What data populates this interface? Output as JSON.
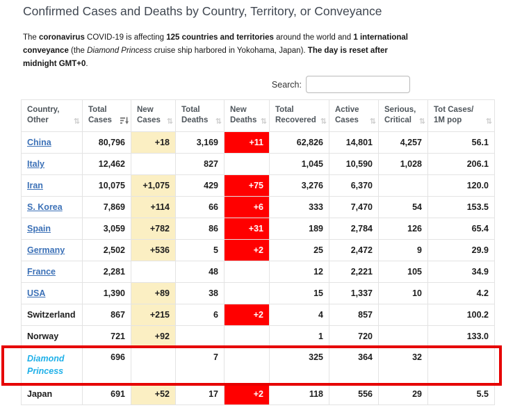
{
  "page": {
    "title": "Confirmed Cases and Deaths by Country, Territory, or Conveyance",
    "intro_segments": [
      {
        "text": "The ",
        "bold": false
      },
      {
        "text": "coronavirus",
        "bold": true
      },
      {
        "text": " COVID-19 is affecting ",
        "bold": false
      },
      {
        "text": "125 countries and territories",
        "bold": true
      },
      {
        "text": " around the world and ",
        "bold": false
      },
      {
        "text": "1 international conveyance",
        "bold": true
      },
      {
        "text": " (the ",
        "bold": false
      },
      {
        "text": "Diamond Princess",
        "bold": false,
        "italic": true
      },
      {
        "text": " cruise ship harbored in Yokohama, Japan). ",
        "bold": false
      },
      {
        "text": "The day is reset after midnight GMT+0",
        "bold": true
      },
      {
        "text": ".",
        "bold": false
      }
    ]
  },
  "search": {
    "label": "Search:",
    "value": "",
    "placeholder": ""
  },
  "table": {
    "columns": [
      {
        "key": "country",
        "line1": "Country,",
        "line2": "Other",
        "sort": "none"
      },
      {
        "key": "total_cases",
        "line1": "Total",
        "line2": "Cases",
        "sort": "desc"
      },
      {
        "key": "new_cases",
        "line1": "New",
        "line2": "Cases",
        "sort": "none"
      },
      {
        "key": "total_deaths",
        "line1": "Total",
        "line2": "Deaths",
        "sort": "none"
      },
      {
        "key": "new_deaths",
        "line1": "New",
        "line2": "Deaths",
        "sort": "none"
      },
      {
        "key": "total_recovered",
        "line1": "Total",
        "line2": "Recovered",
        "sort": "none"
      },
      {
        "key": "active_cases",
        "line1": "Active",
        "line2": "Cases",
        "sort": "none"
      },
      {
        "key": "serious_critical",
        "line1": "Serious,",
        "line2": "Critical",
        "sort": "none"
      },
      {
        "key": "cases_per_1m",
        "line1": "Tot Cases/",
        "line2": "1M pop",
        "sort": "none"
      }
    ],
    "rows": [
      {
        "country": "China",
        "style": "link",
        "total_cases": "80,796",
        "new_cases": "+18",
        "total_deaths": "3,169",
        "new_deaths": "+11",
        "total_recovered": "62,826",
        "active_cases": "14,801",
        "serious_critical": "4,257",
        "cases_per_1m": "56.1"
      },
      {
        "country": "Italy",
        "style": "link",
        "total_cases": "12,462",
        "new_cases": "",
        "total_deaths": "827",
        "new_deaths": "",
        "total_recovered": "1,045",
        "active_cases": "10,590",
        "serious_critical": "1,028",
        "cases_per_1m": "206.1"
      },
      {
        "country": "Iran",
        "style": "link",
        "total_cases": "10,075",
        "new_cases": "+1,075",
        "total_deaths": "429",
        "new_deaths": "+75",
        "total_recovered": "3,276",
        "active_cases": "6,370",
        "serious_critical": "",
        "cases_per_1m": "120.0"
      },
      {
        "country": "S. Korea",
        "style": "link",
        "total_cases": "7,869",
        "new_cases": "+114",
        "total_deaths": "66",
        "new_deaths": "+6",
        "total_recovered": "333",
        "active_cases": "7,470",
        "serious_critical": "54",
        "cases_per_1m": "153.5"
      },
      {
        "country": "Spain",
        "style": "link",
        "total_cases": "3,059",
        "new_cases": "+782",
        "total_deaths": "86",
        "new_deaths": "+31",
        "total_recovered": "189",
        "active_cases": "2,784",
        "serious_critical": "126",
        "cases_per_1m": "65.4"
      },
      {
        "country": "Germany",
        "style": "link",
        "total_cases": "2,502",
        "new_cases": "+536",
        "total_deaths": "5",
        "new_deaths": "+2",
        "total_recovered": "25",
        "active_cases": "2,472",
        "serious_critical": "9",
        "cases_per_1m": "29.9"
      },
      {
        "country": "France",
        "style": "link",
        "total_cases": "2,281",
        "new_cases": "",
        "total_deaths": "48",
        "new_deaths": "",
        "total_recovered": "12",
        "active_cases": "2,221",
        "serious_critical": "105",
        "cases_per_1m": "34.9"
      },
      {
        "country": "USA",
        "style": "link",
        "total_cases": "1,390",
        "new_cases": "+89",
        "total_deaths": "38",
        "new_deaths": "",
        "total_recovered": "15",
        "active_cases": "1,337",
        "serious_critical": "10",
        "cases_per_1m": "4.2"
      },
      {
        "country": "Switzerland",
        "style": "plain",
        "total_cases": "867",
        "new_cases": "+215",
        "total_deaths": "6",
        "new_deaths": "+2",
        "total_recovered": "4",
        "active_cases": "857",
        "serious_critical": "",
        "cases_per_1m": "100.2"
      },
      {
        "country": "Norway",
        "style": "plain",
        "total_cases": "721",
        "new_cases": "+92",
        "total_deaths": "",
        "new_deaths": "",
        "total_recovered": "1",
        "active_cases": "720",
        "serious_critical": "",
        "cases_per_1m": "133.0"
      },
      {
        "country": "Diamond Princess",
        "style": "vessel",
        "total_cases": "696",
        "new_cases": "",
        "total_deaths": "7",
        "new_deaths": "",
        "total_recovered": "325",
        "active_cases": "364",
        "serious_critical": "32",
        "cases_per_1m": ""
      },
      {
        "country": "Japan",
        "style": "plain",
        "total_cases": "691",
        "new_cases": "+52",
        "total_deaths": "17",
        "new_deaths": "+2",
        "total_recovered": "118",
        "active_cases": "556",
        "serious_critical": "29",
        "cases_per_1m": "5.5"
      }
    ],
    "highlighted_row": "Diamond Princess"
  },
  "icons": {
    "sort_both": "⇅",
    "sort_desc_name": "sort-amount-desc-icon"
  },
  "colors": {
    "link_blue": "#3c71b7",
    "vessel_blue": "#1fb0e8",
    "new_cases_yellow": "#fbefc3",
    "new_deaths_red": "#ff0000",
    "annotation_red": "#e60000",
    "header_text": "#4e555b"
  }
}
